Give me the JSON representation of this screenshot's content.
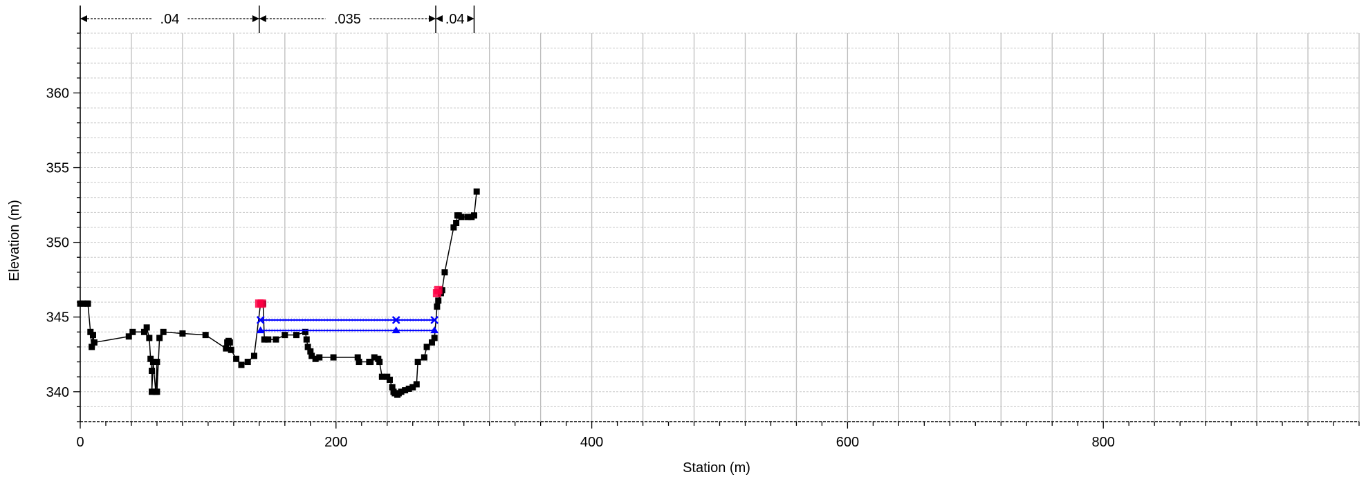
{
  "chart_data": {
    "type": "scatter",
    "title": "",
    "xlabel": "Station (m)",
    "ylabel": "Elevation (m)",
    "xlim": [
      0,
      1000
    ],
    "ylim": [
      338,
      364
    ],
    "x_ticks": [
      0,
      200,
      400,
      600,
      800
    ],
    "x_tick_labels": [
      "0",
      "200",
      "400",
      "600",
      "800"
    ],
    "y_ticks": [
      340,
      345,
      350,
      355,
      360
    ],
    "y_tick_labels": [
      "340",
      "345",
      "350",
      "355",
      "360"
    ],
    "grid": true,
    "legend": "none",
    "mannings_n": {
      "labels": [
        ".04",
        ".035",
        ".04"
      ],
      "breaks": [
        0,
        140,
        278,
        308
      ]
    },
    "series": [
      {
        "marker": "square",
        "color": "#000000",
        "x": [
          0,
          2,
          5,
          6,
          8,
          9,
          10,
          11,
          38,
          41,
          50,
          52,
          54,
          55,
          56,
          56,
          57,
          59,
          60,
          60,
          62,
          65,
          80,
          98,
          114,
          115,
          116,
          117,
          118,
          122,
          126,
          131,
          136,
          141,
          143,
          144,
          147,
          153,
          160,
          169,
          176,
          177,
          178,
          180,
          181,
          184,
          187,
          198,
          217,
          218,
          226,
          227,
          230,
          233,
          234,
          236,
          240,
          242,
          244,
          245,
          246,
          248,
          249,
          251,
          254,
          257,
          260,
          263,
          264,
          269,
          271,
          275,
          277,
          279,
          280,
          282,
          283,
          285,
          292,
          294,
          295,
          296,
          298,
          303,
          306,
          308,
          310
        ],
        "y": [
          345.9,
          345.9,
          345.9,
          345.9,
          344,
          343,
          343.8,
          343.3,
          343.7,
          344,
          344,
          344.3,
          343.6,
          342.2,
          341.4,
          340,
          342,
          340,
          342,
          340,
          343.6,
          344,
          343.9,
          343.8,
          342.9,
          343.3,
          343.4,
          343.3,
          342.8,
          342.2,
          341.8,
          342,
          342.4,
          345.9,
          345.9,
          343.5,
          343.5,
          343.5,
          343.8,
          343.8,
          344,
          343.5,
          343,
          342.7,
          342.4,
          342.2,
          342.3,
          342.3,
          342.3,
          342,
          342,
          342,
          342.3,
          342.2,
          342,
          341,
          341,
          340.8,
          340.3,
          340,
          339.9,
          339.8,
          339.9,
          340,
          340.1,
          340.2,
          340.3,
          340.5,
          342,
          342.3,
          343,
          343.3,
          343.6,
          345.7,
          346.1,
          346.6,
          346.8,
          348,
          351,
          351.3,
          351.8,
          351.8,
          351.7,
          351.7,
          351.7,
          351.8,
          353.4
        ]
      }
    ],
    "bank_stations": {
      "color": "#ff0044",
      "x": [
        140,
        142,
        279,
        280
      ],
      "y": [
        345.9,
        345.9,
        346.6,
        346.8
      ]
    },
    "water_surfaces": [
      {
        "color": "#0000ff",
        "x": [
          141,
          247,
          277
        ],
        "y": [
          344.8,
          344.8,
          344.8
        ],
        "marker": "x"
      },
      {
        "color": "#0000ff",
        "x": [
          141,
          247,
          277
        ],
        "y": [
          344.1,
          344.1,
          344.1
        ],
        "marker": "triangle"
      }
    ]
  }
}
